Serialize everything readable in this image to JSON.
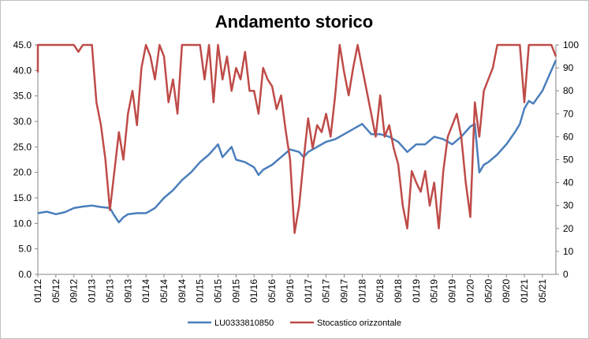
{
  "chart_data": {
    "type": "line",
    "title": "Andamento storico",
    "xlabel": "",
    "ylabel": "",
    "x_tick_labels": [
      "01/12",
      "05/12",
      "09/12",
      "01/13",
      "05/13",
      "09/13",
      "01/14",
      "05/14",
      "09/14",
      "01/15",
      "05/15",
      "09/15",
      "01/16",
      "05/16",
      "09/16",
      "01/17",
      "05/17",
      "09/17",
      "01/18",
      "05/18",
      "09/18",
      "01/19",
      "05/19",
      "09/19",
      "01/20",
      "05/20",
      "09/20",
      "01/21",
      "05/21"
    ],
    "y_left_ticks": [
      "0.0",
      "5.0",
      "10.0",
      "15.0",
      "20.0",
      "25.0",
      "30.0",
      "35.0",
      "40.0",
      "45.0"
    ],
    "y_right_ticks": [
      "0",
      "10",
      "20",
      "30",
      "40",
      "50",
      "60",
      "70",
      "80",
      "90",
      "100"
    ],
    "ylim_left": [
      0,
      45
    ],
    "ylim_right": [
      0,
      100
    ],
    "x_range": [
      "01/12",
      "08/21"
    ],
    "grid": false,
    "legend_position": "bottom",
    "series": [
      {
        "name": "LU0333810850",
        "axis": "left",
        "color": "#4a7ebb",
        "points": [
          [
            "01/12",
            12.0
          ],
          [
            "03/12",
            12.3
          ],
          [
            "05/12",
            11.8
          ],
          [
            "07/12",
            12.2
          ],
          [
            "09/12",
            13.0
          ],
          [
            "11/12",
            13.3
          ],
          [
            "01/13",
            13.5
          ],
          [
            "03/13",
            13.2
          ],
          [
            "05/13",
            13.0
          ],
          [
            "06/13",
            11.5
          ],
          [
            "07/13",
            10.2
          ],
          [
            "08/13",
            11.2
          ],
          [
            "09/13",
            11.8
          ],
          [
            "11/13",
            12.0
          ],
          [
            "01/14",
            12.0
          ],
          [
            "03/14",
            13.0
          ],
          [
            "05/14",
            15.0
          ],
          [
            "07/14",
            16.5
          ],
          [
            "09/14",
            18.5
          ],
          [
            "11/14",
            20.0
          ],
          [
            "01/15",
            22.0
          ],
          [
            "03/15",
            23.5
          ],
          [
            "05/15",
            25.5
          ],
          [
            "06/15",
            23.0
          ],
          [
            "07/15",
            24.0
          ],
          [
            "08/15",
            25.0
          ],
          [
            "09/15",
            22.5
          ],
          [
            "11/15",
            22.0
          ],
          [
            "01/16",
            21.0
          ],
          [
            "02/16",
            19.5
          ],
          [
            "03/16",
            20.5
          ],
          [
            "05/16",
            21.5
          ],
          [
            "07/16",
            23.0
          ],
          [
            "09/16",
            24.5
          ],
          [
            "11/16",
            24.0
          ],
          [
            "12/16",
            23.0
          ],
          [
            "01/17",
            24.0
          ],
          [
            "03/17",
            25.0
          ],
          [
            "05/17",
            26.0
          ],
          [
            "07/17",
            26.5
          ],
          [
            "09/17",
            27.5
          ],
          [
            "11/17",
            28.5
          ],
          [
            "01/18",
            29.5
          ],
          [
            "03/18",
            27.5
          ],
          [
            "05/18",
            27.5
          ],
          [
            "07/18",
            27.0
          ],
          [
            "09/18",
            26.0
          ],
          [
            "11/18",
            24.0
          ],
          [
            "01/19",
            25.5
          ],
          [
            "03/19",
            25.5
          ],
          [
            "05/19",
            27.0
          ],
          [
            "07/19",
            26.5
          ],
          [
            "09/19",
            25.5
          ],
          [
            "11/19",
            27.0
          ],
          [
            "01/20",
            29.0
          ],
          [
            "02/20",
            29.5
          ],
          [
            "03/20",
            20.0
          ],
          [
            "04/20",
            21.5
          ],
          [
            "05/20",
            22.0
          ],
          [
            "07/20",
            23.5
          ],
          [
            "09/20",
            25.5
          ],
          [
            "11/20",
            28.0
          ],
          [
            "12/20",
            29.5
          ],
          [
            "01/21",
            32.5
          ],
          [
            "02/21",
            34.0
          ],
          [
            "03/21",
            33.5
          ],
          [
            "05/21",
            36.0
          ],
          [
            "07/21",
            40.0
          ],
          [
            "08/21",
            42.0
          ]
        ]
      },
      {
        "name": "Stocastico orizzontale",
        "axis": "right",
        "color": "#be4b48",
        "points": [
          [
            "01/12",
            88
          ],
          [
            "01/12",
            100
          ],
          [
            "03/12",
            100
          ],
          [
            "05/12",
            100
          ],
          [
            "07/12",
            100
          ],
          [
            "09/12",
            100
          ],
          [
            "10/12",
            97
          ],
          [
            "11/12",
            100
          ],
          [
            "12/12",
            100
          ],
          [
            "01/13",
            100
          ],
          [
            "02/13",
            75
          ],
          [
            "03/13",
            65
          ],
          [
            "04/13",
            50
          ],
          [
            "05/13",
            28
          ],
          [
            "06/13",
            45
          ],
          [
            "07/13",
            62
          ],
          [
            "08/13",
            50
          ],
          [
            "09/13",
            70
          ],
          [
            "10/13",
            80
          ],
          [
            "11/13",
            65
          ],
          [
            "12/13",
            90
          ],
          [
            "01/14",
            100
          ],
          [
            "02/14",
            95
          ],
          [
            "03/14",
            85
          ],
          [
            "04/14",
            100
          ],
          [
            "05/14",
            95
          ],
          [
            "06/14",
            75
          ],
          [
            "07/14",
            85
          ],
          [
            "08/14",
            70
          ],
          [
            "09/14",
            100
          ],
          [
            "10/14",
            100
          ],
          [
            "11/14",
            100
          ],
          [
            "12/14",
            100
          ],
          [
            "01/15",
            100
          ],
          [
            "02/15",
            85
          ],
          [
            "03/15",
            100
          ],
          [
            "04/15",
            75
          ],
          [
            "05/15",
            100
          ],
          [
            "06/15",
            85
          ],
          [
            "07/15",
            95
          ],
          [
            "08/15",
            80
          ],
          [
            "09/15",
            90
          ],
          [
            "10/15",
            85
          ],
          [
            "11/15",
            97
          ],
          [
            "12/15",
            80
          ],
          [
            "01/16",
            80
          ],
          [
            "02/16",
            70
          ],
          [
            "03/16",
            90
          ],
          [
            "04/16",
            85
          ],
          [
            "05/16",
            82
          ],
          [
            "06/16",
            72
          ],
          [
            "07/16",
            78
          ],
          [
            "08/16",
            63
          ],
          [
            "09/16",
            50
          ],
          [
            "10/16",
            18
          ],
          [
            "11/16",
            30
          ],
          [
            "12/16",
            50
          ],
          [
            "01/17",
            68
          ],
          [
            "02/17",
            55
          ],
          [
            "03/17",
            65
          ],
          [
            "04/17",
            62
          ],
          [
            "05/17",
            70
          ],
          [
            "06/17",
            60
          ],
          [
            "07/17",
            78
          ],
          [
            "08/17",
            100
          ],
          [
            "09/17",
            88
          ],
          [
            "10/17",
            78
          ],
          [
            "11/17",
            90
          ],
          [
            "12/17",
            100
          ],
          [
            "01/18",
            90
          ],
          [
            "02/18",
            80
          ],
          [
            "03/18",
            70
          ],
          [
            "04/18",
            60
          ],
          [
            "05/18",
            78
          ],
          [
            "06/18",
            60
          ],
          [
            "07/18",
            65
          ],
          [
            "08/18",
            55
          ],
          [
            "09/18",
            48
          ],
          [
            "10/18",
            30
          ],
          [
            "11/18",
            20
          ],
          [
            "12/18",
            45
          ],
          [
            "01/19",
            40
          ],
          [
            "02/19",
            36
          ],
          [
            "03/19",
            45
          ],
          [
            "04/19",
            30
          ],
          [
            "05/19",
            40
          ],
          [
            "06/19",
            20
          ],
          [
            "07/19",
            45
          ],
          [
            "08/19",
            60
          ],
          [
            "09/19",
            65
          ],
          [
            "10/19",
            70
          ],
          [
            "11/19",
            60
          ],
          [
            "12/19",
            40
          ],
          [
            "01/20",
            25
          ],
          [
            "02/20",
            75
          ],
          [
            "03/20",
            60
          ],
          [
            "04/20",
            80
          ],
          [
            "05/20",
            85
          ],
          [
            "06/20",
            90
          ],
          [
            "07/20",
            100
          ],
          [
            "09/20",
            100
          ],
          [
            "11/20",
            100
          ],
          [
            "12/20",
            100
          ],
          [
            "01/21",
            75
          ],
          [
            "02/21",
            100
          ],
          [
            "03/21",
            100
          ],
          [
            "05/21",
            100
          ],
          [
            "07/21",
            100
          ],
          [
            "08/21",
            95
          ]
        ]
      }
    ]
  }
}
